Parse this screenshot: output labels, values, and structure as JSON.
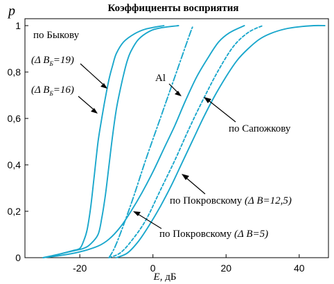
{
  "chart_data": {
    "type": "line",
    "title": "Коэффициенты восприятия",
    "ylabel": "p",
    "xlabel_var": "E,",
    "xlabel_unit": " дБ",
    "xlim": [
      -35,
      48
    ],
    "ylim": [
      0,
      1.02
    ],
    "x_ticks": [
      -20,
      0,
      20,
      40
    ],
    "x_tick_labels": [
      "-20",
      "0",
      "20",
      "40"
    ],
    "y_ticks": [
      0,
      0.2,
      0.4,
      0.6,
      0.8,
      1
    ],
    "y_tick_labels": [
      "0",
      "0,2",
      "0,4",
      "0,6",
      "0,8",
      "1"
    ],
    "color": "#1aa7cc",
    "series": [
      {
        "key": "bykov19",
        "style": "solid",
        "points": [
          [
            -30,
            0
          ],
          [
            -27,
            0.01
          ],
          [
            -22,
            0.03
          ],
          [
            -20,
            0.04
          ],
          [
            -19,
            0.07
          ],
          [
            -18,
            0.12
          ],
          [
            -17,
            0.22
          ],
          [
            -16,
            0.36
          ],
          [
            -15,
            0.5
          ],
          [
            -14,
            0.6
          ],
          [
            -13,
            0.69
          ],
          [
            -12,
            0.77
          ],
          [
            -11,
            0.83
          ],
          [
            -10,
            0.88
          ],
          [
            -8,
            0.93
          ],
          [
            -5,
            0.965
          ],
          [
            -2,
            0.985
          ],
          [
            3,
            1
          ]
        ]
      },
      {
        "key": "bykov16",
        "style": "solid",
        "points": [
          [
            -30,
            0
          ],
          [
            -27,
            0.01
          ],
          [
            -23,
            0.025
          ],
          [
            -19,
            0.04
          ],
          [
            -17,
            0.06
          ],
          [
            -15,
            0.1
          ],
          [
            -14,
            0.17
          ],
          [
            -13,
            0.27
          ],
          [
            -12,
            0.4
          ],
          [
            -11,
            0.53
          ],
          [
            -10,
            0.64
          ],
          [
            -9,
            0.72
          ],
          [
            -8,
            0.79
          ],
          [
            -7,
            0.85
          ],
          [
            -6,
            0.89
          ],
          [
            -4,
            0.94
          ],
          [
            -1,
            0.975
          ],
          [
            2,
            0.99
          ],
          [
            7,
            1
          ]
        ]
      },
      {
        "key": "al",
        "style": "dashdot",
        "points": [
          [
            -12,
            0
          ],
          [
            -10,
            0.06
          ],
          [
            -6,
            0.23
          ],
          [
            -2,
            0.42
          ],
          [
            2,
            0.6
          ],
          [
            6,
            0.78
          ],
          [
            10,
            0.96
          ],
          [
            11,
            1
          ]
        ]
      },
      {
        "key": "pokrovsky12_5",
        "style": "solid",
        "points": [
          [
            -30,
            0
          ],
          [
            -25,
            0.01
          ],
          [
            -20,
            0.025
          ],
          [
            -15,
            0.05
          ],
          [
            -12,
            0.08
          ],
          [
            -9,
            0.13
          ],
          [
            -6,
            0.2
          ],
          [
            -3,
            0.28
          ],
          [
            0,
            0.37
          ],
          [
            3,
            0.47
          ],
          [
            6,
            0.57
          ],
          [
            9,
            0.68
          ],
          [
            12,
            0.78
          ],
          [
            15,
            0.86
          ],
          [
            18,
            0.93
          ],
          [
            21,
            0.97
          ],
          [
            25,
            1
          ]
        ]
      },
      {
        "key": "sapozhkov",
        "style": "dashed",
        "points": [
          [
            -12,
            0
          ],
          [
            -9,
            0.02
          ],
          [
            -6,
            0.07
          ],
          [
            -2,
            0.16
          ],
          [
            2,
            0.29
          ],
          [
            6,
            0.42
          ],
          [
            10,
            0.56
          ],
          [
            14,
            0.69
          ],
          [
            18,
            0.81
          ],
          [
            22,
            0.91
          ],
          [
            26,
            0.97
          ],
          [
            30,
            1
          ]
        ]
      },
      {
        "key": "pokrovsky5",
        "style": "solid",
        "points": [
          [
            -10,
            0
          ],
          [
            -7,
            0.02
          ],
          [
            -4,
            0.07
          ],
          [
            -1,
            0.14
          ],
          [
            2,
            0.22
          ],
          [
            5,
            0.31
          ],
          [
            8,
            0.41
          ],
          [
            11,
            0.51
          ],
          [
            14,
            0.61
          ],
          [
            17,
            0.7
          ],
          [
            20,
            0.78
          ],
          [
            23,
            0.85
          ],
          [
            26,
            0.9
          ],
          [
            29,
            0.94
          ],
          [
            32,
            0.965
          ],
          [
            36,
            0.985
          ],
          [
            40,
            0.995
          ],
          [
            44,
            1
          ],
          [
            47,
            1
          ]
        ]
      }
    ],
    "annotations": {
      "bykov": "по Быкову",
      "bykov19_pre": "(Δ B",
      "bykov19_sub": "Б",
      "bykov19_post": "=19)",
      "bykov16_pre": "(Δ B",
      "bykov16_sub": "Б",
      "bykov16_post": "=16)",
      "al": "Al",
      "sapozhkov": "по Сапожкову",
      "pokrovsky12_5_text": "по Покровскому ",
      "pokrovsky12_5_param": "(Δ B=12,5)",
      "pokrovsky5_text": "по Покровскому ",
      "pokrovsky5_param": "(Δ B=5)"
    }
  }
}
